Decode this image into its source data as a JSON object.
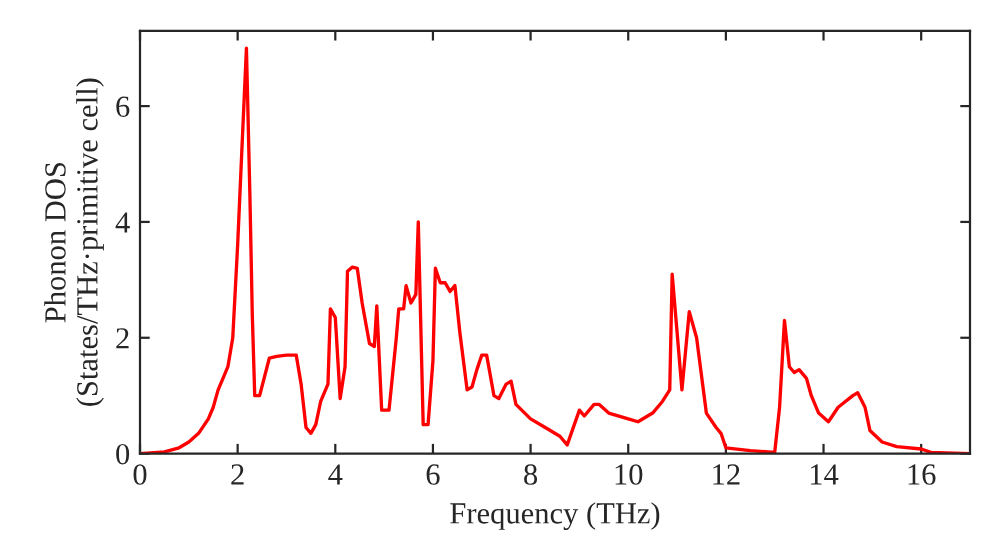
{
  "chart_data": {
    "type": "line",
    "xlabel": "Frequency (THz)",
    "ylabel": "Phonon DOS\n(States/THz·primitive cell)",
    "xlim": [
      0,
      17
    ],
    "ylim": [
      0,
      7.3
    ],
    "xticks": [
      0,
      2,
      4,
      6,
      8,
      10,
      12,
      14,
      16
    ],
    "yticks": [
      0,
      2,
      4,
      6
    ],
    "grid": false,
    "legend": false,
    "marker": "none",
    "line_style": "solid",
    "series": [
      {
        "color": "#ff0000",
        "x": [
          0,
          0.5,
          0.8,
          1.0,
          1.2,
          1.4,
          1.5,
          1.6,
          1.7,
          1.8,
          1.9,
          2.0,
          2.1,
          2.18,
          2.25,
          2.3,
          2.35,
          2.45,
          2.65,
          2.8,
          3.0,
          3.2,
          3.3,
          3.4,
          3.5,
          3.6,
          3.7,
          3.85,
          3.9,
          4.0,
          4.1,
          4.2,
          4.25,
          4.35,
          4.45,
          4.55,
          4.7,
          4.8,
          4.85,
          4.95,
          5.1,
          5.25,
          5.3,
          5.4,
          5.45,
          5.55,
          5.65,
          5.7,
          5.8,
          5.9,
          6.0,
          6.05,
          6.15,
          6.25,
          6.35,
          6.45,
          6.55,
          6.7,
          6.8,
          6.9,
          7.0,
          7.1,
          7.25,
          7.35,
          7.5,
          7.6,
          7.7,
          8.0,
          8.3,
          8.6,
          8.75,
          9.0,
          9.1,
          9.3,
          9.4,
          9.6,
          10.0,
          10.2,
          10.5,
          10.7,
          10.85,
          10.9,
          11.1,
          11.25,
          11.4,
          11.6,
          11.8,
          11.9,
          12.0,
          12.5,
          13.0,
          13.1,
          13.2,
          13.3,
          13.4,
          13.5,
          13.65,
          13.75,
          13.9,
          14.1,
          14.3,
          14.6,
          14.7,
          14.85,
          14.95,
          15.2,
          15.5,
          16.0,
          16.2,
          17.0
        ],
        "values": [
          0,
          0.03,
          0.1,
          0.2,
          0.35,
          0.6,
          0.8,
          1.1,
          1.3,
          1.5,
          2.0,
          3.6,
          5.5,
          7.0,
          4.5,
          2.4,
          1.0,
          1.0,
          1.65,
          1.68,
          1.7,
          1.7,
          1.2,
          0.45,
          0.35,
          0.5,
          0.9,
          1.2,
          2.5,
          2.35,
          0.95,
          1.5,
          3.15,
          3.22,
          3.2,
          2.6,
          1.9,
          1.85,
          2.55,
          0.75,
          0.75,
          2.0,
          2.5,
          2.5,
          2.9,
          2.6,
          2.75,
          4.0,
          0.5,
          0.5,
          1.6,
          3.2,
          2.95,
          2.95,
          2.8,
          2.9,
          2.1,
          1.1,
          1.15,
          1.45,
          1.7,
          1.7,
          1.0,
          0.95,
          1.2,
          1.25,
          0.85,
          0.6,
          0.45,
          0.3,
          0.15,
          0.75,
          0.65,
          0.85,
          0.85,
          0.7,
          0.6,
          0.55,
          0.7,
          0.9,
          1.1,
          3.1,
          1.1,
          2.45,
          2.0,
          0.7,
          0.45,
          0.35,
          0.1,
          0.05,
          0.02,
          0.8,
          2.3,
          1.5,
          1.4,
          1.45,
          1.3,
          1.0,
          0.7,
          0.55,
          0.8,
          1.0,
          1.05,
          0.8,
          0.4,
          0.2,
          0.12,
          0.08,
          0.02,
          0.0
        ]
      }
    ]
  }
}
